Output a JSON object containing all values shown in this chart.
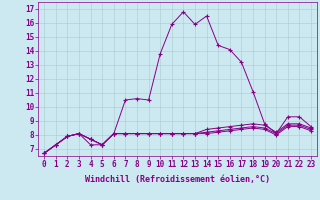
{
  "xlabel": "Windchill (Refroidissement éolien,°C)",
  "background_color": "#cce8f0",
  "line_color": "#880088",
  "grid_color": "#aacccc",
  "xlim": [
    -0.5,
    23.5
  ],
  "ylim": [
    6.5,
    17.5
  ],
  "xticks": [
    0,
    1,
    2,
    3,
    4,
    5,
    6,
    7,
    8,
    9,
    10,
    11,
    12,
    13,
    14,
    15,
    16,
    17,
    18,
    19,
    20,
    21,
    22,
    23
  ],
  "yticks": [
    7,
    8,
    9,
    10,
    11,
    12,
    13,
    14,
    15,
    16,
    17
  ],
  "series": [
    [
      6.7,
      7.3,
      7.9,
      8.1,
      7.3,
      7.3,
      8.1,
      10.5,
      10.6,
      10.5,
      13.8,
      15.9,
      16.8,
      15.9,
      16.5,
      14.4,
      14.1,
      13.2,
      11.1,
      8.8,
      8.1,
      9.3,
      9.3,
      8.6
    ],
    [
      6.7,
      7.3,
      7.9,
      8.1,
      7.7,
      7.3,
      8.1,
      8.1,
      8.1,
      8.1,
      8.1,
      8.1,
      8.1,
      8.1,
      8.4,
      8.5,
      8.6,
      8.7,
      8.8,
      8.7,
      8.2,
      8.8,
      8.8,
      8.5
    ],
    [
      6.7,
      7.3,
      7.9,
      8.1,
      7.7,
      7.3,
      8.1,
      8.1,
      8.1,
      8.1,
      8.1,
      8.1,
      8.1,
      8.1,
      8.2,
      8.3,
      8.4,
      8.5,
      8.6,
      8.5,
      8.1,
      8.7,
      8.7,
      8.4
    ],
    [
      6.7,
      7.3,
      7.9,
      8.1,
      7.7,
      7.3,
      8.1,
      8.1,
      8.1,
      8.1,
      8.1,
      8.1,
      8.1,
      8.1,
      8.1,
      8.2,
      8.3,
      8.4,
      8.5,
      8.4,
      8.0,
      8.6,
      8.6,
      8.3
    ]
  ],
  "marker": "+",
  "markersize": 3,
  "linewidth": 0.7,
  "tick_fontsize": 5.5,
  "xlabel_fontsize": 6.0
}
